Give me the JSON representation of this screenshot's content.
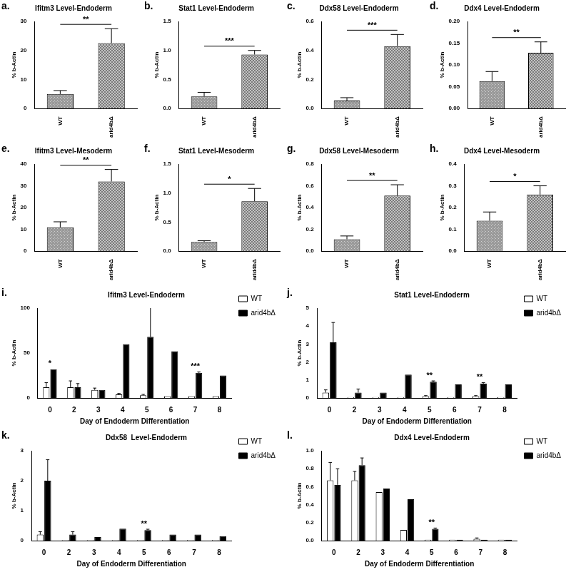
{
  "chart_data": [
    {
      "panel": "a.",
      "type": "bar",
      "title": "Ifitm3 Level-Endoderm",
      "y_label": "% b-Actin",
      "categories": [
        "WT",
        "arid4bΔ"
      ],
      "values": [
        5,
        22.5
      ],
      "errors": [
        1.2,
        5
      ],
      "colors": [
        "#9a9a9a",
        "#7a7a7a"
      ],
      "ylim": [
        0,
        30
      ],
      "yticks": [
        0,
        10,
        20,
        30
      ],
      "significance": [
        {
          "between": [
            "WT",
            "arid4bΔ"
          ],
          "label": "**"
        }
      ]
    },
    {
      "panel": "b.",
      "type": "bar",
      "title": "Stat1 Level-Endoderm",
      "y_label": "% b-Actin",
      "categories": [
        "WT",
        "arid4bΔ"
      ],
      "values": [
        0.21,
        0.93
      ],
      "errors": [
        0.07,
        0.07
      ],
      "colors": [
        "#9a9a9a",
        "#7a7a7a"
      ],
      "ylim": [
        0,
        1.5
      ],
      "yticks": [
        {
          "value": 0,
          "label": "0.0"
        },
        0.5,
        {
          "value": 1,
          "label": "1.0"
        },
        1.5
      ],
      "significance": [
        {
          "between": [
            "WT",
            "arid4bΔ"
          ],
          "label": "***"
        }
      ]
    },
    {
      "panel": "c.",
      "type": "bar",
      "title": "Ddx58 Level-Endoderm",
      "y_label": "% b-Actin",
      "categories": [
        "WT",
        "arid4bΔ"
      ],
      "values": [
        0.055,
        0.43
      ],
      "errors": [
        0.02,
        0.08
      ],
      "colors": [
        "#9a9a9a",
        "#7a7a7a"
      ],
      "ylim": [
        0,
        0.6
      ],
      "yticks": [
        {
          "value": 0,
          "label": "0.0"
        },
        0.2,
        0.4,
        0.6
      ],
      "significance": [
        {
          "between": [
            "WT",
            "arid4bΔ"
          ],
          "label": "***"
        }
      ]
    },
    {
      "panel": "d.",
      "type": "bar",
      "title": "Ddx4 Level-Endoderm",
      "y_label": "% b-Actin",
      "categories": [
        "WT",
        "arid4bΔ"
      ],
      "values": [
        0.063,
        0.128
      ],
      "errors": [
        0.022,
        0.025
      ],
      "colors": [
        "#9a9a9a",
        "#7a7a7a"
      ],
      "ylim": [
        0,
        0.2
      ],
      "yticks": [
        {
          "value": 0,
          "label": "0.00"
        },
        0.05,
        {
          "value": 0.1,
          "label": "0.10"
        },
        0.15,
        {
          "value": 0.2,
          "label": "0.20"
        }
      ],
      "significance": [
        {
          "between": [
            "WT",
            "arid4bΔ"
          ],
          "label": "**"
        }
      ]
    },
    {
      "panel": "e.",
      "type": "bar",
      "title": "Ifitm3 Level-Mesoderm",
      "y_label": "% b-Actin",
      "categories": [
        "WT",
        "arid4bΔ"
      ],
      "values": [
        11,
        32
      ],
      "errors": [
        2.5,
        5.5
      ],
      "colors": [
        "#9a9a9a",
        "#7a7a7a"
      ],
      "ylim": [
        0,
        40
      ],
      "yticks": [
        0,
        10,
        20,
        30,
        40
      ],
      "significance": [
        {
          "between": [
            "WT",
            "arid4bΔ"
          ],
          "label": "**"
        }
      ]
    },
    {
      "panel": "f.",
      "type": "bar",
      "title": "Stat1 Level-Mesoderm",
      "y_label": "% b-Actin",
      "categories": [
        "WT",
        "arid4bΔ"
      ],
      "values": [
        0.16,
        0.86
      ],
      "errors": [
        0.02,
        0.22
      ],
      "colors": [
        "#9a9a9a",
        "#7a7a7a"
      ],
      "ylim": [
        0,
        1.5
      ],
      "yticks": [
        {
          "value": 0,
          "label": "0.0"
        },
        0.5,
        {
          "value": 1,
          "label": "1.0"
        },
        1.5
      ],
      "significance": [
        {
          "between": [
            "WT",
            "arid4bΔ"
          ],
          "label": "*"
        }
      ]
    },
    {
      "panel": "g.",
      "type": "bar",
      "title": "Ddx58 Level-Mesoderm",
      "y_label": "% b-Actin",
      "categories": [
        "WT",
        "arid4bΔ"
      ],
      "values": [
        0.11,
        0.51
      ],
      "errors": [
        0.03,
        0.1
      ],
      "colors": [
        "#9a9a9a",
        "#7a7a7a"
      ],
      "ylim": [
        0,
        0.8
      ],
      "yticks": [
        {
          "value": 0,
          "label": "0.0"
        },
        0.2,
        0.4,
        0.6,
        0.8
      ],
      "significance": [
        {
          "between": [
            "WT",
            "arid4bΔ"
          ],
          "label": "**"
        }
      ]
    },
    {
      "panel": "h.",
      "type": "bar",
      "title": "Ddx4 Level-Mesoderm",
      "y_label": "% b-Actin",
      "categories": [
        "WT",
        "arid4bΔ"
      ],
      "values": [
        0.14,
        0.26
      ],
      "errors": [
        0.04,
        0.04
      ],
      "colors": [
        "#9a9a9a",
        "#7a7a7a"
      ],
      "ylim": [
        0,
        0.4
      ],
      "yticks": [
        {
          "value": 0,
          "label": "0.0"
        },
        0.1,
        0.2,
        0.3,
        0.4
      ],
      "significance": [
        {
          "between": [
            "WT",
            "arid4bΔ"
          ],
          "label": "*"
        }
      ]
    },
    {
      "panel": "i.",
      "type": "bar",
      "title": "Ifitm3 Level-Endoderm",
      "y_label": "% b-Actin",
      "x_label": "Day of Endoderm Differentiation",
      "categories": [
        "0",
        "2",
        "3",
        "4",
        "5",
        "6",
        "7",
        "8"
      ],
      "legend": "right",
      "series": [
        {
          "name": "WT",
          "color": "#ffffff",
          "values": [
            12,
            12,
            9,
            4,
            3,
            2,
            2,
            2
          ],
          "errors": [
            5,
            7,
            2,
            1,
            1,
            0,
            0,
            0
          ]
        },
        {
          "name": "arid4bΔ",
          "color": "#000000",
          "values": [
            32,
            12,
            9,
            60,
            68,
            52,
            28,
            25
          ],
          "errors": [
            0,
            4,
            0,
            0,
            35,
            0,
            1,
            0
          ]
        }
      ],
      "ylim": [
        0,
        100
      ],
      "yticks": [
        0,
        50,
        100
      ],
      "significance": [
        {
          "category": "0",
          "label": "*"
        },
        {
          "category": "7",
          "label": "***"
        }
      ]
    },
    {
      "panel": "j.",
      "type": "bar",
      "title": "Stat1 Level-Endoderm",
      "y_label": "% b-Actin",
      "x_label": "Day of Endoderm Differentiation",
      "categories": [
        "0",
        "2",
        "3",
        "4",
        "5",
        "6",
        "7",
        "8"
      ],
      "legend": "right",
      "series": [
        {
          "name": "WT",
          "color": "#ffffff",
          "values": [
            0.3,
            0.05,
            0.05,
            0.05,
            0.1,
            0.05,
            0.1,
            0.05
          ],
          "errors": [
            0.15,
            0,
            0,
            0,
            0.03,
            0,
            0.03,
            0
          ]
        },
        {
          "name": "arid4bΔ",
          "color": "#000000",
          "values": [
            3.1,
            0.3,
            0.3,
            1.3,
            0.9,
            0.75,
            0.8,
            0.75
          ],
          "errors": [
            1.1,
            0.2,
            0,
            0,
            0.05,
            0,
            0.05,
            0
          ]
        }
      ],
      "ylim": [
        0,
        5
      ],
      "yticks": [
        0,
        1,
        2,
        3,
        4,
        5
      ],
      "significance": [
        {
          "category": "5",
          "label": "**"
        },
        {
          "category": "7",
          "label": "**"
        }
      ]
    },
    {
      "panel": "k.",
      "type": "bar",
      "title": "Ddx58  Level-Endoderm",
      "y_label": "% b-Actin",
      "x_label": "Day of Endoderm Differentiation",
      "categories": [
        "0",
        "2",
        "3",
        "4",
        "5",
        "6",
        "7",
        "8"
      ],
      "legend": "right",
      "series": [
        {
          "name": "WT",
          "color": "#ffffff",
          "values": [
            0.2,
            0.02,
            0.02,
            0.02,
            0.02,
            0.02,
            0.02,
            0.02
          ],
          "errors": [
            0.1,
            0,
            0,
            0,
            0,
            0,
            0,
            0
          ]
        },
        {
          "name": "arid4bΔ",
          "color": "#000000",
          "values": [
            2.0,
            0.2,
            0.12,
            0.4,
            0.35,
            0.2,
            0.2,
            0.15
          ],
          "errors": [
            0.7,
            0.1,
            0,
            0,
            0.03,
            0,
            0,
            0
          ]
        }
      ],
      "ylim": [
        0,
        3
      ],
      "yticks": [
        0,
        1,
        2,
        3
      ],
      "significance": [
        {
          "category": "5",
          "label": "**"
        }
      ]
    },
    {
      "panel": "l.",
      "type": "bar",
      "title": "Ddx4 Level-Endoderm",
      "y_label": "% b-Actin",
      "x_label": "Day of Endoderm Differentiation",
      "categories": [
        "0",
        "2",
        "3",
        "4",
        "5",
        "6",
        "7",
        "8"
      ],
      "legend": "right",
      "series": [
        {
          "name": "WT",
          "color": "#ffffff",
          "values": [
            0.67,
            0.67,
            0.54,
            0.12,
            0.01,
            0.01,
            0.02,
            0.01
          ],
          "errors": [
            0.2,
            0.1,
            0,
            0,
            0,
            0,
            0.01,
            0
          ]
        },
        {
          "name": "arid4bΔ",
          "color": "#000000",
          "values": [
            0.62,
            0.84,
            0.58,
            0.46,
            0.13,
            0.01,
            0.01,
            0.01
          ],
          "errors": [
            0.18,
            0.08,
            0,
            0,
            0.01,
            0,
            0,
            0
          ]
        }
      ],
      "ylim": [
        0,
        1
      ],
      "yticks": [
        {
          "value": 0,
          "label": "0.0"
        },
        0.2,
        0.4,
        0.6,
        0.8,
        {
          "value": 1,
          "label": "1.0"
        }
      ],
      "significance": [
        {
          "category": "5",
          "label": "**"
        }
      ]
    }
  ]
}
